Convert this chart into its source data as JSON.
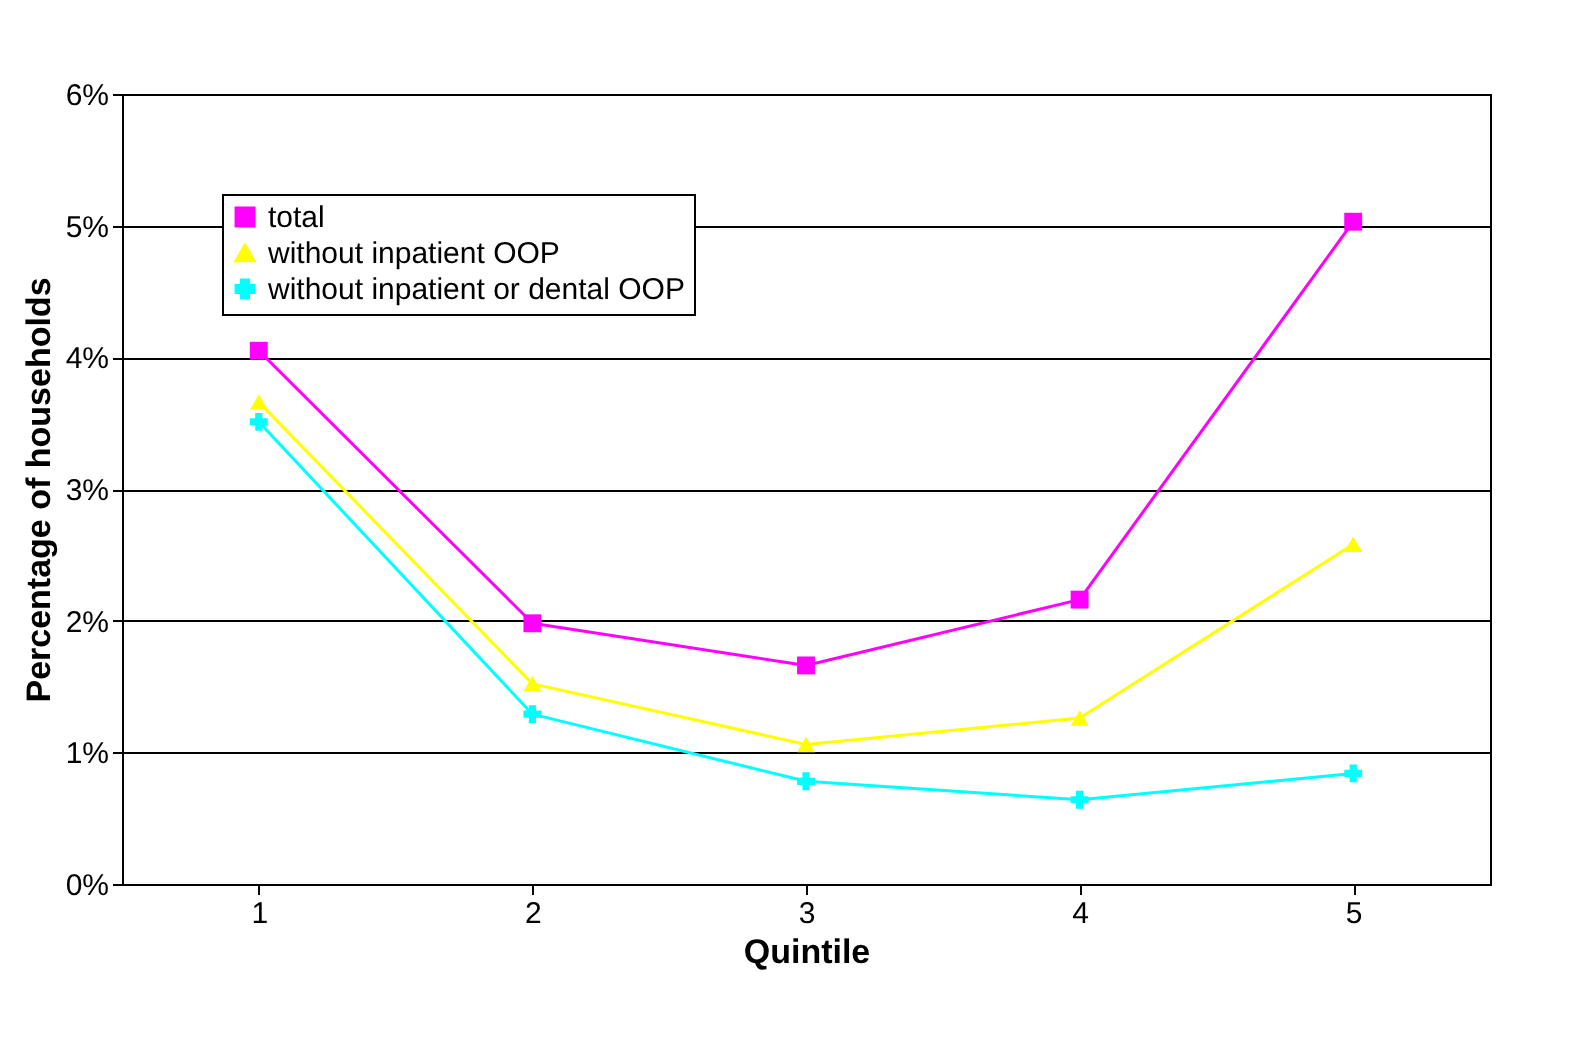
{
  "chart_data": {
    "type": "line",
    "xlabel": "Quintile",
    "ylabel": "Percentage of households",
    "categories": [
      "1",
      "2",
      "3",
      "4",
      "5"
    ],
    "series": [
      {
        "name": "total",
        "color": "#ff00ff",
        "marker": "square",
        "values": [
          4.05,
          1.98,
          1.66,
          2.16,
          5.03
        ]
      },
      {
        "name": "without inpatient OOP",
        "color": "#ffff00",
        "marker": "triangle",
        "values": [
          3.66,
          1.52,
          1.06,
          1.26,
          2.58
        ]
      },
      {
        "name": "without inpatient or dental OOP",
        "color": "#00ffff",
        "marker": "cross",
        "values": [
          3.51,
          1.29,
          0.78,
          0.64,
          0.84
        ]
      }
    ],
    "ylim": [
      0,
      6
    ],
    "yticks": [
      {
        "value": 0,
        "label": "0%"
      },
      {
        "value": 1,
        "label": "1%"
      },
      {
        "value": 2,
        "label": "2%"
      },
      {
        "value": 3,
        "label": "3%"
      },
      {
        "value": 4,
        "label": "4%"
      },
      {
        "value": 5,
        "label": "5%"
      },
      {
        "value": 6,
        "label": "6%"
      }
    ],
    "grid": "y",
    "legend": "top left",
    "line_style": "solid"
  }
}
